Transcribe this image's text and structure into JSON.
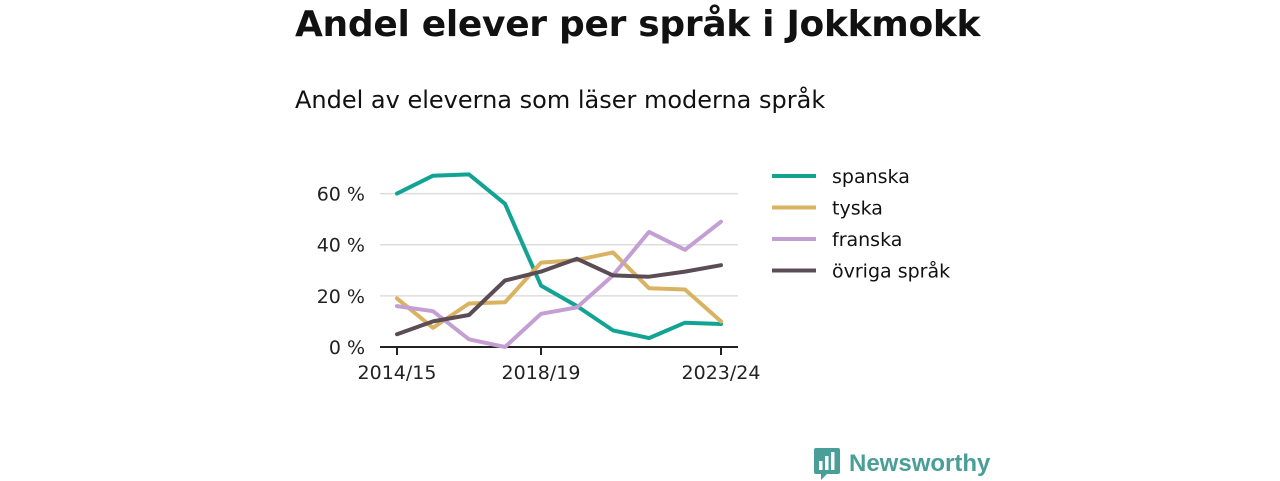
{
  "header": {
    "title": "Andel elever per språk i Jokkmokk",
    "subtitle": "Andel av eleverna som läser moderna språk"
  },
  "brand": {
    "name": "Newsworthy",
    "icon": "bar-chart-bubble-icon",
    "color": "#4a9e98"
  },
  "chart_data": {
    "type": "line",
    "x": [
      "2014/15",
      "2015/16",
      "2016/17",
      "2017/18",
      "2018/19",
      "2019/20",
      "2020/21",
      "2021/22",
      "2022/23",
      "2023/24"
    ],
    "x_tick_labels": [
      "2014/15",
      "2018/19",
      "2023/24"
    ],
    "y_ticks": [
      0,
      20,
      40,
      60
    ],
    "y_tick_labels": [
      "0 %",
      "20 %",
      "40 %",
      "60 %"
    ],
    "ylim": [
      0,
      70
    ],
    "grid": true,
    "legend_position": "right",
    "series": [
      {
        "name": "spanska",
        "color": "#12a394",
        "values": [
          60,
          67,
          67.5,
          56,
          24,
          16,
          6.5,
          3.5,
          9.5,
          9
        ]
      },
      {
        "name": "tyska",
        "color": "#d9b262",
        "values": [
          19,
          7.5,
          17,
          17.5,
          33,
          34,
          37,
          23,
          22.5,
          10
        ]
      },
      {
        "name": "franska",
        "color": "#c39fd3",
        "values": [
          16,
          14,
          3,
          0,
          13,
          15.5,
          28,
          45,
          38,
          49
        ]
      },
      {
        "name": "övriga språk",
        "color": "#5c4c55",
        "values": [
          5,
          10,
          12.5,
          26,
          29.5,
          34.5,
          28,
          27.5,
          29.5,
          32
        ]
      }
    ]
  }
}
